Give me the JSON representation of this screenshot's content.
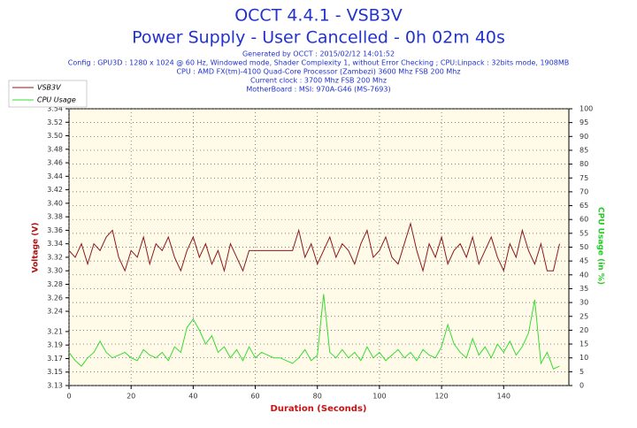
{
  "chart_data": {
    "type": "line",
    "title": "OCCT 4.4.1 - VSB3V",
    "subtitle": "Power Supply - User Cancelled - 0h 02m 40s",
    "notes": [
      "Generated by OCCT : 2015/02/12 14:01:52",
      "Config : GPU3D : 1280 x 1024 @ 60 Hz, Windowed mode, Shader Complexity 1, without Error Checking ; CPU:Linpack : 32bits mode, 1908MB",
      "CPU : AMD FX(tm)-4100 Quad-Core Processor (Zambezi) 3600 Mhz FSB 200 Mhz",
      "Current clock : 3700 Mhz FSB 200 Mhz",
      "MotherBoard : MSI: 970A-G46 (MS-7693)"
    ],
    "xlabel": "Duration (Seconds)",
    "ylabel": "Voltage (V)",
    "y2label": "CPU Usage (in %)",
    "x": [
      0,
      2,
      4,
      6,
      8,
      10,
      12,
      14,
      16,
      18,
      20,
      22,
      24,
      26,
      28,
      30,
      32,
      34,
      36,
      38,
      40,
      42,
      44,
      46,
      48,
      50,
      52,
      54,
      56,
      58,
      60,
      62,
      64,
      66,
      68,
      70,
      72,
      74,
      76,
      78,
      80,
      82,
      84,
      86,
      88,
      90,
      92,
      94,
      96,
      98,
      100,
      102,
      104,
      106,
      108,
      110,
      112,
      114,
      116,
      118,
      120,
      122,
      124,
      126,
      128,
      130,
      132,
      134,
      136,
      138,
      140,
      142,
      144,
      146,
      148,
      150,
      152,
      154,
      156,
      158
    ],
    "series": [
      {
        "name": "VSB3V",
        "color": "#8b1a1a",
        "axis": "y",
        "values": [
          3.33,
          3.32,
          3.34,
          3.31,
          3.34,
          3.33,
          3.35,
          3.36,
          3.32,
          3.3,
          3.33,
          3.32,
          3.35,
          3.31,
          3.34,
          3.33,
          3.35,
          3.32,
          3.3,
          3.33,
          3.35,
          3.32,
          3.34,
          3.31,
          3.33,
          3.3,
          3.34,
          3.32,
          3.3,
          3.33,
          3.33,
          3.33,
          3.33,
          3.33,
          3.33,
          3.33,
          3.33,
          3.36,
          3.32,
          3.34,
          3.31,
          3.33,
          3.35,
          3.32,
          3.34,
          3.33,
          3.31,
          3.34,
          3.36,
          3.32,
          3.33,
          3.35,
          3.32,
          3.31,
          3.34,
          3.37,
          3.33,
          3.3,
          3.34,
          3.32,
          3.35,
          3.31,
          3.33,
          3.34,
          3.32,
          3.35,
          3.31,
          3.33,
          3.35,
          3.32,
          3.3,
          3.34,
          3.32,
          3.36,
          3.33,
          3.31,
          3.34,
          3.3,
          3.3,
          3.34
        ]
      },
      {
        "name": "CPU Usage",
        "color": "#33dd33",
        "axis": "y2",
        "values": [
          12,
          9,
          7,
          10,
          12,
          16,
          12,
          10,
          11,
          12,
          10,
          9,
          13,
          11,
          10,
          12,
          9,
          14,
          12,
          21,
          24,
          20,
          15,
          18,
          12,
          14,
          10,
          13,
          9,
          14,
          10,
          12,
          11,
          10,
          10,
          9,
          8,
          10,
          13,
          9,
          11,
          33,
          12,
          10,
          13,
          10,
          12,
          9,
          14,
          10,
          12,
          9,
          11,
          13,
          10,
          12,
          9,
          13,
          11,
          10,
          14,
          22,
          15,
          12,
          10,
          17,
          11,
          14,
          10,
          15,
          12,
          16,
          11,
          14,
          19,
          31,
          8,
          12,
          6,
          7
        ]
      }
    ],
    "xlim": [
      0,
      161
    ],
    "xticks": [
      0,
      20,
      40,
      60,
      80,
      100,
      120,
      140
    ],
    "ylim": [
      3.13,
      3.54
    ],
    "yticks": [
      3.13,
      3.15,
      3.17,
      3.19,
      3.21,
      3.24,
      3.26,
      3.28,
      {
        "value": 3.3,
        "label": "3.30"
      },
      3.32,
      3.34,
      3.36,
      3.38,
      {
        "value": 3.4,
        "label": "3.40"
      },
      3.42,
      3.44,
      3.46,
      3.48,
      {
        "value": 3.5,
        "label": "3.50"
      },
      3.52,
      3.54
    ],
    "y2lim": [
      0,
      100
    ],
    "y2ticks": [
      0,
      5,
      10,
      15,
      20,
      25,
      30,
      35,
      40,
      45,
      50,
      55,
      60,
      65,
      70,
      75,
      80,
      85,
      90,
      95,
      100
    ],
    "grid": true
  }
}
